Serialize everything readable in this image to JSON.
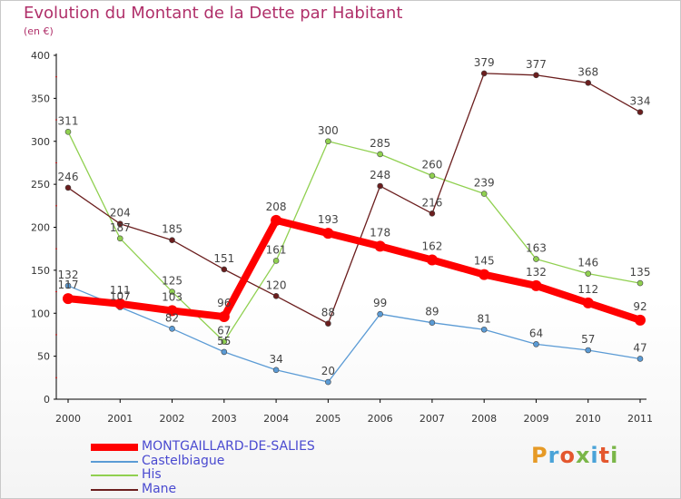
{
  "title": "Evolution du Montant de la Dette par Habitant",
  "unit_label": "(en €)",
  "logo_text": "Proxiti",
  "logo_colors": [
    "#e69a26",
    "#4aa3d8",
    "#e4572e",
    "#7ab648",
    "#4aa3d8",
    "#e4572e",
    "#7ab648"
  ],
  "chart_data": {
    "type": "line",
    "title": "Evolution du Montant de la Dette par Habitant",
    "ylabel": "(en €)",
    "xlabel": "",
    "ylim": [
      0,
      400
    ],
    "yticks": [
      0,
      50,
      100,
      150,
      200,
      250,
      300,
      350,
      400
    ],
    "grid": false,
    "legend_position": "bottom",
    "categories": [
      "2000",
      "2001",
      "2002",
      "2003",
      "2004",
      "2005",
      "2006",
      "2007",
      "2008",
      "2009",
      "2010",
      "2011"
    ],
    "series": [
      {
        "name": "Castelbiague",
        "color": "#5b9bd5",
        "values": [
          132,
          107,
          82,
          55,
          34,
          20,
          99,
          89,
          81,
          64,
          57,
          47
        ]
      },
      {
        "name": "His",
        "color": "#90d050",
        "values": [
          311,
          187,
          125,
          67,
          161,
          300,
          285,
          260,
          239,
          163,
          146,
          135
        ]
      },
      {
        "name": "Mane",
        "color": "#6b1e1e",
        "values": [
          246,
          204,
          185,
          151,
          120,
          88,
          248,
          216,
          379,
          377,
          368,
          334
        ]
      },
      {
        "name": "MONTGAILLARD-DE-SALIES",
        "color": "#ff0000",
        "values": [
          117,
          111,
          103,
          96,
          208,
          193,
          178,
          162,
          145,
          132,
          112,
          92
        ]
      }
    ]
  }
}
